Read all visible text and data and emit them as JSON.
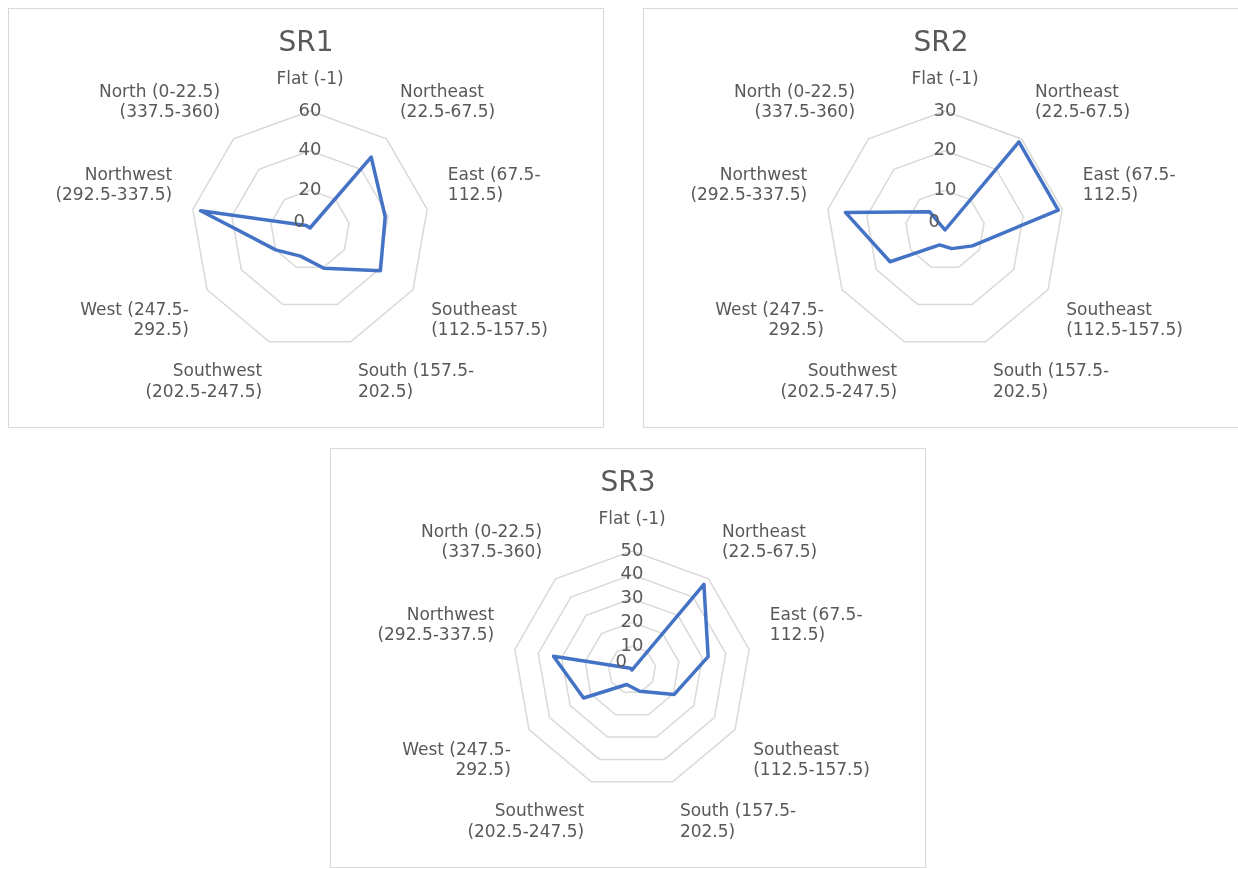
{
  "chart_data": [
    {
      "type": "radar",
      "title": "SR1",
      "categories": [
        "Flat (-1)",
        "Northeast (22.5-67.5)",
        "East (67.5-112.5)",
        "Southeast (112.5-157.5)",
        "South (157.5-202.5)",
        "Southwest (202.5-247.5)",
        "West (247.5-292.5)",
        "Northwest (292.5-337.5)",
        "North (0-22.5) (337.5-360)"
      ],
      "series": [
        {
          "color": "#4472c4",
          "values": [
            1,
            48,
            38.5,
            41,
            20.5,
            14,
            20,
            56,
            3
          ]
        }
      ],
      "ylim": [
        0,
        60
      ],
      "yticks": [
        0,
        20,
        40,
        60
      ],
      "grid": true,
      "marker": "none"
    },
    {
      "type": "radar",
      "title": "SR2",
      "categories": [
        "Flat (-1)",
        "Northeast (22.5-67.5)",
        "East (67.5-112.5)",
        "Southeast (112.5-157.5)",
        "South (157.5-202.5)",
        "Southwest (202.5-247.5)",
        "West (247.5-292.5)",
        "Northwest (292.5-337.5)",
        "North (0-22.5) (337.5-360)"
      ],
      "series": [
        {
          "color": "#4472c4",
          "values": [
            0,
            29,
            29,
            8,
            5,
            4,
            16,
            25.5,
            6
          ]
        }
      ],
      "ylim": [
        0,
        30
      ],
      "yticks": [
        0,
        10,
        20,
        30
      ],
      "grid": true,
      "marker": "none"
    },
    {
      "type": "radar",
      "title": "SR3",
      "categories": [
        "Flat (-1)",
        "Northeast (22.5-67.5)",
        "East (67.5-112.5)",
        "Southeast (112.5-157.5)",
        "South (157.5-202.5)",
        "Southwest (202.5-247.5)",
        "West (247.5-292.5)",
        "Northwest (292.5-337.5)",
        "North (0-22.5) (337.5-360)"
      ],
      "series": [
        {
          "color": "#4472c4",
          "values": [
            0,
            47,
            32.5,
            20.5,
            9.5,
            6.5,
            23.5,
            33.5,
            1
          ]
        }
      ],
      "ylim": [
        0,
        50
      ],
      "yticks": [
        0,
        10,
        20,
        30,
        40,
        50
      ],
      "grid": true,
      "marker": "none"
    }
  ]
}
